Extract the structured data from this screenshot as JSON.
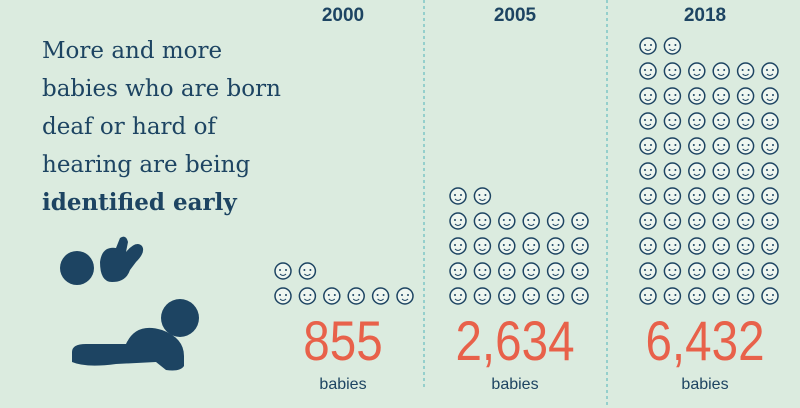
{
  "chart_data": {
    "type": "pictogram",
    "title": "More and more babies who are born deaf or hard of hearing are being",
    "title_emphasis": "identified early",
    "categories": [
      "2000",
      "2005",
      "2018"
    ],
    "values": [
      855,
      2634,
      6432
    ],
    "value_labels": [
      "855",
      "2,634",
      "6,432"
    ],
    "unit_label": "babies",
    "icon_counts": [
      8,
      26,
      62
    ],
    "value_color": "#e8614a",
    "icon_color": "#1d4462"
  }
}
